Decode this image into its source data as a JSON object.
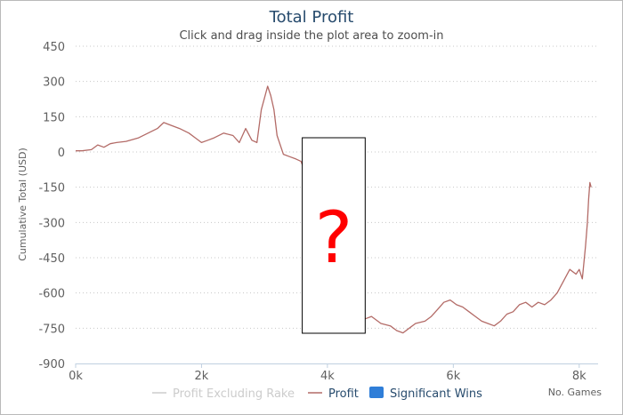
{
  "colors": {
    "title": "#274b6d",
    "profit": "#b36b67",
    "excluding": "#cccccc",
    "significant": "#2f7ed8",
    "grid": "#c8c8c8",
    "overlay": "#ff0000"
  },
  "chart_data": {
    "type": "line",
    "title": "Total Profit",
    "subtitle": "Click and drag inside the plot area to zoom-in",
    "ylabel": "Cumulative Total (USD)",
    "xlabel": "No. Games",
    "xlim": [
      0,
      8300
    ],
    "ylim": [
      -900,
      450
    ],
    "xticks": [
      0,
      2000,
      4000,
      6000,
      8000
    ],
    "xtick_labels": [
      "0k",
      "2k",
      "4k",
      "6k",
      "8k"
    ],
    "yticks": [
      450,
      300,
      150,
      0,
      -150,
      -300,
      -450,
      -600,
      -750,
      -900
    ],
    "ytick_labels": [
      "450",
      "300",
      "150",
      "0",
      "-150",
      "-300",
      "-450",
      "-600",
      "-750",
      "-900"
    ],
    "grid": true,
    "legend": [
      "Profit Excluding Rake",
      "Profit",
      "Significant Wins"
    ],
    "legend_placement": "bottom",
    "hidden_range": [
      3600,
      4600
    ],
    "overlay_text": "?",
    "series": [
      {
        "name": "Profit",
        "x": [
          0,
          100,
          250,
          350,
          450,
          550,
          650,
          800,
          1000,
          1150,
          1300,
          1400,
          1500,
          1650,
          1800,
          1900,
          2000,
          2100,
          2200,
          2350,
          2500,
          2600,
          2700,
          2800,
          2880,
          2950,
          3000,
          3050,
          3100,
          3150,
          3200,
          3300,
          3400,
          3500,
          3580,
          4600,
          4700,
          4850,
          5000,
          5100,
          5200,
          5300,
          5400,
          5550,
          5650,
          5750,
          5850,
          5950,
          6050,
          6150,
          6250,
          6350,
          6450,
          6550,
          6650,
          6750,
          6850,
          6950,
          7050,
          7150,
          7250,
          7350,
          7450,
          7550,
          7650,
          7750,
          7850,
          7950,
          8000,
          8050,
          8100,
          8130,
          8150,
          8170,
          8190
        ],
        "y": [
          5,
          5,
          10,
          30,
          20,
          35,
          40,
          45,
          60,
          80,
          100,
          125,
          115,
          100,
          80,
          60,
          40,
          50,
          60,
          80,
          70,
          40,
          100,
          50,
          40,
          180,
          230,
          280,
          240,
          180,
          70,
          -10,
          -20,
          -30,
          -40,
          -710,
          -700,
          -730,
          -740,
          -760,
          -770,
          -750,
          -730,
          -720,
          -700,
          -670,
          -640,
          -630,
          -650,
          -660,
          -680,
          -700,
          -720,
          -730,
          -740,
          -720,
          -690,
          -680,
          -650,
          -640,
          -660,
          -640,
          -650,
          -630,
          -600,
          -550,
          -500,
          -520,
          -500,
          -540,
          -400,
          -300,
          -200,
          -130,
          -150
        ]
      }
    ]
  }
}
